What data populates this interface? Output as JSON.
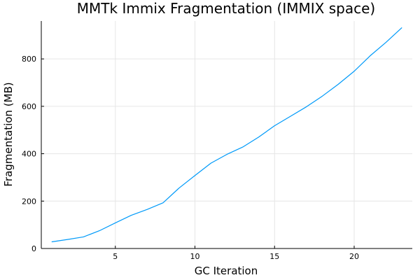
{
  "chart_data": {
    "type": "line",
    "title": "MMTk Immix Fragmentation (IMMIX space)",
    "xlabel": "GC Iteration",
    "ylabel": "Fragmentation (MB)",
    "xlim": [
      0.35,
      23.65
    ],
    "ylim": [
      0,
      960
    ],
    "xticks": [
      5,
      10,
      15,
      20
    ],
    "yticks": [
      0,
      200,
      400,
      600,
      800
    ],
    "grid": true,
    "legend": "none",
    "series": [
      {
        "color": "#009AF9",
        "x": [
          1,
          2,
          3,
          4,
          5,
          6,
          7,
          8,
          9,
          10,
          11,
          12,
          13,
          14,
          15,
          16,
          17,
          18,
          19,
          20,
          21,
          22,
          23
        ],
        "y": [
          28,
          38,
          49,
          75,
          108,
          140,
          165,
          193,
          255,
          308,
          360,
          397,
          428,
          470,
          518,
          558,
          598,
          643,
          693,
          748,
          813,
          870,
          932
        ]
      }
    ]
  }
}
